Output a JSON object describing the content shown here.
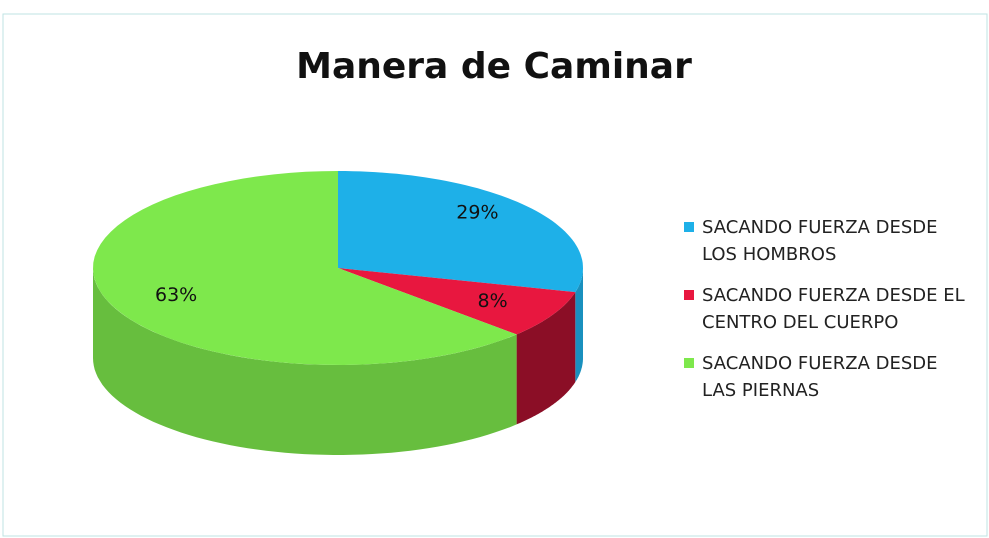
{
  "chart_data": {
    "type": "pie",
    "title": "Manera de Caminar",
    "categories": [
      "SACANDO FUERZA DESDE LOS HOMBROS",
      "SACANDO FUERZA DESDE EL CENTRO DEL CUERPO",
      "SACANDO FUERZA DESDE LAS PIERNAS"
    ],
    "values": [
      29,
      8,
      63
    ],
    "value_labels": [
      "29%",
      "8%",
      "63%"
    ],
    "colors": [
      "#1eb0e8",
      "#e8173f",
      "#7ee84c"
    ],
    "legend": "right"
  }
}
